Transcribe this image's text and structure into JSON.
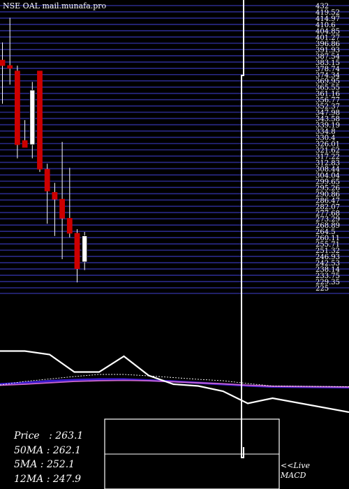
{
  "title": "NSE OAL mail.munafa.pro",
  "stats": [
    {
      "label": "Price",
      "value": "263.1"
    },
    {
      "label": "50MA",
      "value": "262.1"
    },
    {
      "label": "5MA",
      "value": "252.1"
    },
    {
      "label": "12MA",
      "value": "247.9"
    }
  ],
  "live_link": "<<Live",
  "macd_label": "MACD",
  "colors": {
    "background": "#000000",
    "grid": "#2a2a8a",
    "up": "#ffffff",
    "down": "#cc0000",
    "macd_main": "#ffffff",
    "macd_signal": "#cc66cc",
    "macd_hist": "#3a1acc"
  },
  "chart_data": [
    {
      "type": "candlestick",
      "title": "",
      "ylim": [
        225,
        432
      ],
      "ytick_labels": [
        "432",
        "419.52",
        "414.97",
        "410.6",
        "404.85",
        "401.27",
        "396.86",
        "391.93",
        "387.54",
        "383.15",
        "378.74",
        "374.34",
        "369.95",
        "365.55",
        "361.16",
        "356.77",
        "352.37",
        "347.98",
        "343.58",
        "339.19",
        "334.8",
        "330.4",
        "326.01",
        "321.62",
        "317.22",
        "312.83",
        "308.44",
        "304.04",
        "299.65",
        "295.26",
        "290.86",
        "286.47",
        "282.07",
        "277.68",
        "273.29",
        "268.89",
        "264.5",
        "260.11",
        "255.71",
        "251.32",
        "246.93",
        "242.53",
        "238.14",
        "233.75",
        "229.35",
        "225"
      ],
      "candles": [
        {
          "o": 392,
          "h": 405,
          "l": 360,
          "c": 388
        },
        {
          "o": 388,
          "h": 423,
          "l": 374,
          "c": 386
        },
        {
          "o": 384,
          "h": 388,
          "l": 320,
          "c": 330
        },
        {
          "o": 333,
          "h": 348,
          "l": 328,
          "c": 328
        },
        {
          "o": 330,
          "h": 376,
          "l": 320,
          "c": 370
        },
        {
          "o": 384,
          "h": 384,
          "l": 310,
          "c": 312
        },
        {
          "o": 312,
          "h": 316,
          "l": 272,
          "c": 296
        },
        {
          "o": 295,
          "h": 302,
          "l": 263,
          "c": 290
        },
        {
          "o": 290,
          "h": 332,
          "l": 246,
          "c": 276
        },
        {
          "o": 276,
          "h": 313,
          "l": 262,
          "c": 265
        },
        {
          "o": 265,
          "h": 268,
          "l": 229,
          "c": 239
        },
        {
          "o": 244,
          "h": 266,
          "l": 238,
          "c": 263.1
        }
      ]
    },
    {
      "type": "line",
      "title": "",
      "ylim": [
        -14,
        12
      ],
      "series": [
        {
          "values": [
            7.5,
            7.5,
            6.5,
            1.5,
            1.5,
            6.0,
            0.5,
            -2.0,
            -2.5,
            -4.0,
            -7.5,
            -6.0
          ]
        },
        {
          "values": [
            -2.2,
            -1.2,
            -0.5,
            0.2,
            0.8,
            0.8,
            0.4,
            -0.1,
            -0.6,
            -1.0,
            -1.8,
            -2.5
          ]
        },
        {
          "values": [
            -2.0,
            -1.6,
            -1.1,
            -0.8,
            -0.6,
            -0.6,
            -0.9,
            -1.2,
            -1.6,
            -2.0,
            -2.4,
            -2.7
          ]
        },
        {
          "values": [
            -2.3,
            -2.0,
            -1.6,
            -1.2,
            -1.0,
            -0.9,
            -1.0,
            -1.3,
            -1.6,
            -1.9,
            -2.3,
            -2.6
          ]
        }
      ]
    }
  ]
}
